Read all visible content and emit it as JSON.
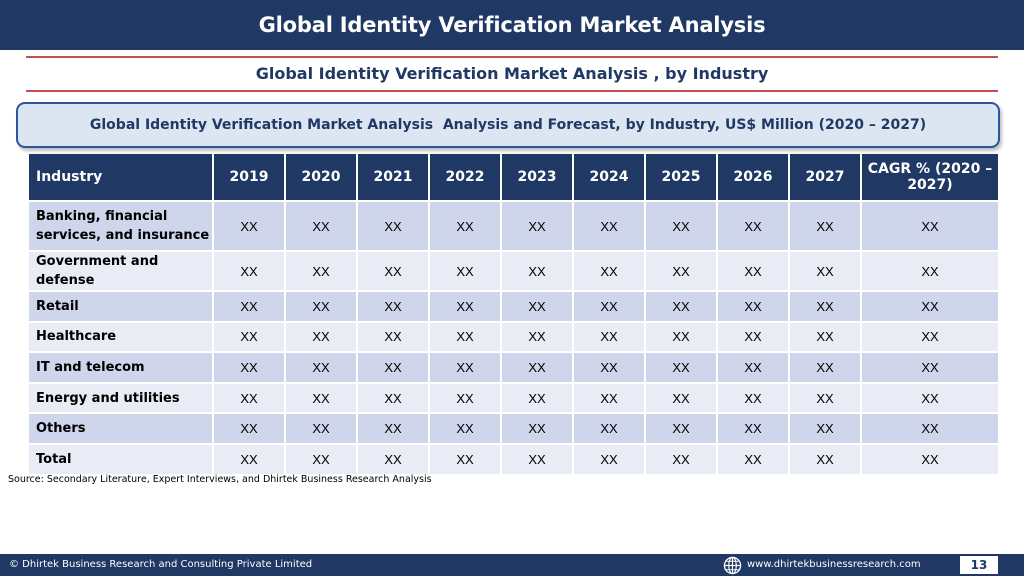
{
  "header": {
    "title": "Global Identity Verification Market Analysis"
  },
  "subtitle": "Global Identity Verification Market Analysis , by Industry",
  "banner": "Global Identity Verification Market Analysis  Analysis and Forecast, by Industry, US$ Million (2020 – 2027)",
  "table": {
    "columns": [
      "Industry",
      "2019",
      "2020",
      "2021",
      "2022",
      "2023",
      "2024",
      "2025",
      "2026",
      "2027",
      "CAGR % (2020 – 2027)"
    ],
    "rows": [
      {
        "industry": "Banking, financial services, and insurance",
        "values": [
          "XX",
          "XX",
          "XX",
          "XX",
          "XX",
          "XX",
          "XX",
          "XX",
          "XX",
          "XX"
        ]
      },
      {
        "industry": "Government and defense",
        "values": [
          "XX",
          "XX",
          "XX",
          "XX",
          "XX",
          "XX",
          "XX",
          "XX",
          "XX",
          "XX"
        ]
      },
      {
        "industry": "Retail",
        "values": [
          "XX",
          "XX",
          "XX",
          "XX",
          "XX",
          "XX",
          "XX",
          "XX",
          "XX",
          "XX"
        ]
      },
      {
        "industry": "Healthcare",
        "values": [
          "XX",
          "XX",
          "XX",
          "XX",
          "XX",
          "XX",
          "XX",
          "XX",
          "XX",
          "XX"
        ]
      },
      {
        "industry": "IT and telecom",
        "values": [
          "XX",
          "XX",
          "XX",
          "XX",
          "XX",
          "XX",
          "XX",
          "XX",
          "XX",
          "XX"
        ]
      },
      {
        "industry": "Energy and utilities",
        "values": [
          "XX",
          "XX",
          "XX",
          "XX",
          "XX",
          "XX",
          "XX",
          "XX",
          "XX",
          "XX"
        ]
      },
      {
        "industry": "Others",
        "values": [
          "XX",
          "XX",
          "XX",
          "XX",
          "XX",
          "XX",
          "XX",
          "XX",
          "XX",
          "XX"
        ]
      },
      {
        "industry": "Total",
        "values": [
          "XX",
          "XX",
          "XX",
          "XX",
          "XX",
          "XX",
          "XX",
          "XX",
          "XX",
          "XX"
        ]
      }
    ]
  },
  "source": "Source: Secondary Literature, Expert Interviews, and Dhirtek Business Research Analysis",
  "footer": {
    "copyright": "© Dhirtek Business Research and Consulting Private Limited",
    "url_icon": "globe-icon",
    "url": "www.dhirtekbusinessresearch.com",
    "page": "13"
  },
  "colors": {
    "navy": "#1f3864",
    "red_rule": "#c0504d",
    "banner_fill": "#dce6f2",
    "row_dark": "#cfd5ea",
    "row_light": "#e9ebf5"
  }
}
